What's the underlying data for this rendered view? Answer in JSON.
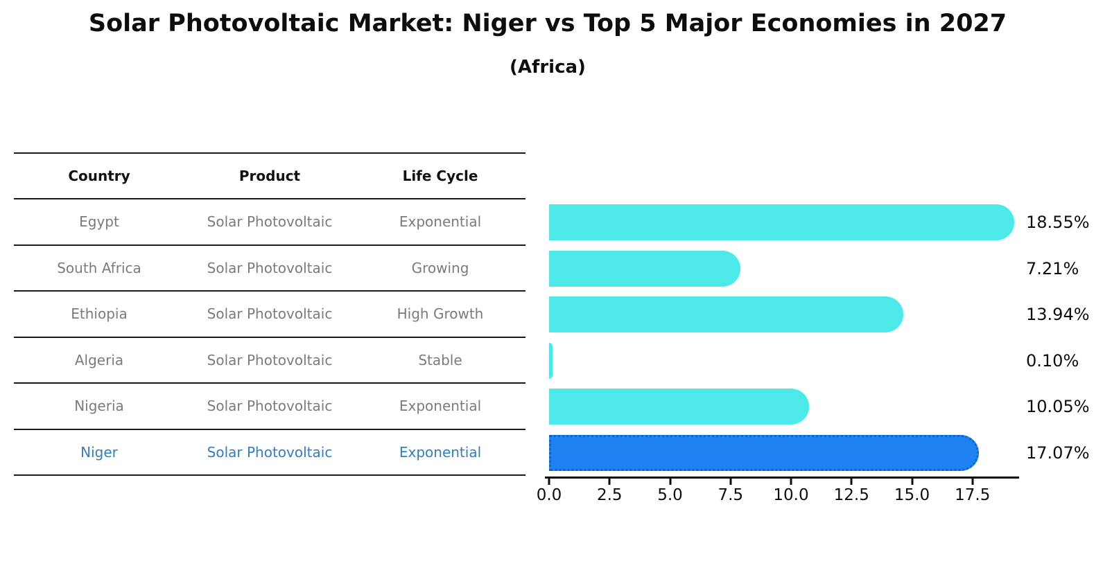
{
  "header": {
    "title": "Solar Photovoltaic Market: Niger vs Top 5 Major Economies in 2027",
    "subtitle": "(Africa)"
  },
  "table": {
    "headers": [
      "Country",
      "Product",
      "Life Cycle"
    ],
    "rows": [
      {
        "country": "Egypt",
        "product": "Solar Photovoltaic",
        "life_cycle": "Exponential"
      },
      {
        "country": "South Africa",
        "product": "Solar Photovoltaic",
        "life_cycle": "Growing"
      },
      {
        "country": "Ethiopia",
        "product": "Solar Photovoltaic",
        "life_cycle": "High Growth"
      },
      {
        "country": "Algeria",
        "product": "Solar Photovoltaic",
        "life_cycle": "Stable"
      },
      {
        "country": "Nigeria",
        "product": "Solar Photovoltaic",
        "life_cycle": "Exponential"
      },
      {
        "country": "Niger",
        "product": "Solar Photovoltaic",
        "life_cycle": "Exponential"
      }
    ],
    "highlighted_row": "Niger"
  },
  "chart_data": {
    "type": "bar",
    "orientation": "horizontal",
    "title": "Solar Photovoltaic Market: Niger vs Top 5 Major Economies in 2027",
    "subtitle": "(Africa)",
    "categories": [
      "Egypt",
      "South Africa",
      "Ethiopia",
      "Algeria",
      "Nigeria",
      "Niger"
    ],
    "values": [
      18.55,
      7.21,
      13.94,
      0.1,
      10.05,
      17.07
    ],
    "value_labels": [
      "18.55%",
      "7.21%",
      "13.94%",
      "0.10%",
      "10.05%",
      "17.07%"
    ],
    "x_tick_labels": [
      "0.0",
      "2.5",
      "5.0",
      "7.5",
      "10.0",
      "12.5",
      "15.0",
      "17.5"
    ],
    "xlim": [
      0,
      19.4
    ],
    "grid": false,
    "legend": false,
    "highlight_index": 5,
    "colors": {
      "bar": "#4de9e9",
      "highlight_bar": "#1e82f0",
      "highlight_border": "#1663c7",
      "table_text": "#7b7b7b",
      "highlight_text": "#2e7fc4",
      "axis": "#0d0d0d"
    }
  }
}
